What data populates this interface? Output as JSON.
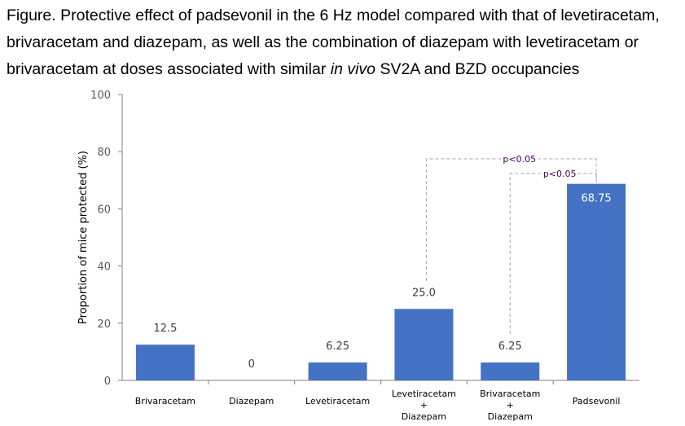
{
  "title": {
    "part1": "Figure. Protective effect of padsevonil in the 6 Hz model compared with that of levetiracetam, brivaracetam and diazepam, as well as the combination of diazepam with levetiracetam or brivaracetam at doses associated with similar ",
    "italic": "in vivo",
    "part2": " SV2A and BZD occupancies"
  },
  "chart_data": {
    "type": "bar",
    "title": "Protective effect of padsevonil in the 6 Hz model",
    "ylabel": "Proportion of mice protected (%)",
    "xlabel": "",
    "ylim": [
      0,
      100
    ],
    "yticks": [
      0,
      20,
      40,
      60,
      80,
      100
    ],
    "grid": false,
    "categories": [
      [
        "Brivaracetam"
      ],
      [
        "Diazepam"
      ],
      [
        "Levetiracetam"
      ],
      [
        "Levetiracetam",
        "+",
        "Diazepam"
      ],
      [
        "Brivaracetam",
        "+",
        "Diazepam"
      ],
      [
        "Padsevonil"
      ]
    ],
    "values": [
      12.5,
      0,
      6.25,
      25.0,
      6.25,
      68.75
    ],
    "value_labels": [
      "12.5",
      "0",
      "6.25",
      "25.0",
      "6.25",
      "68.75"
    ],
    "bar_color": "#4472c4",
    "annotations": [
      {
        "from": 3,
        "to": 5,
        "text": "p<0.05"
      },
      {
        "from": 4,
        "to": 5,
        "text": "p<0.05"
      }
    ]
  }
}
